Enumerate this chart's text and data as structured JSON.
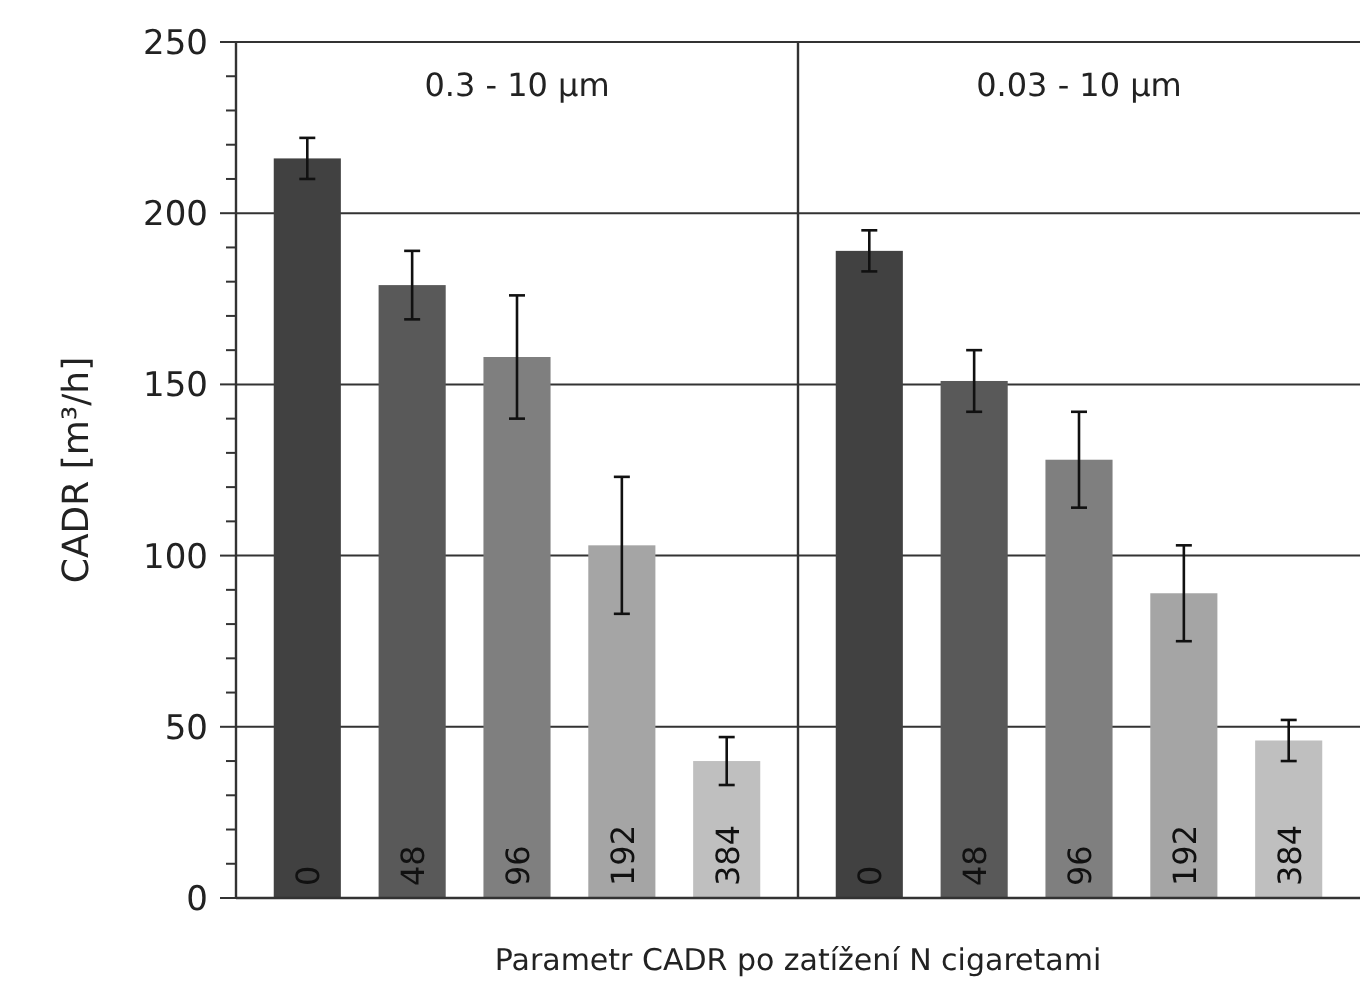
{
  "chart_data": [
    {
      "type": "bar",
      "title": "0.3 - 10 µm",
      "ylabel": "CADR [m³/h]",
      "xlabel": "Parametr CADR po zatížení N cigaretami",
      "categories": [
        "0",
        "48",
        "96",
        "192",
        "384"
      ],
      "values": [
        216,
        179,
        158,
        103,
        40
      ],
      "errors": [
        6,
        10,
        18,
        20,
        7
      ],
      "colors": [
        "#414141",
        "#595959",
        "#7f7f7f",
        "#a5a5a5",
        "#bfbfbf"
      ],
      "ylim": [
        0,
        250
      ],
      "yticks": [
        0,
        {
          "value": 10,
          "label": null
        },
        {
          "value": 20,
          "label": null
        },
        {
          "value": 30,
          "label": null
        },
        {
          "value": 40,
          "label": null
        },
        50,
        {
          "value": 60,
          "label": null
        },
        {
          "value": 70,
          "label": null
        },
        {
          "value": 80,
          "label": null
        },
        {
          "value": 90,
          "label": null
        },
        100,
        {
          "value": 110,
          "label": null
        },
        {
          "value": 120,
          "label": null
        },
        {
          "value": 130,
          "label": null
        },
        {
          "value": 140,
          "label": null
        },
        150,
        {
          "value": 160,
          "label": null
        },
        {
          "value": 170,
          "label": null
        },
        {
          "value": 180,
          "label": null
        },
        {
          "value": 190,
          "label": null
        },
        200,
        {
          "value": 210,
          "label": null
        },
        {
          "value": 220,
          "label": null
        },
        {
          "value": 230,
          "label": null
        },
        {
          "value": 240,
          "label": null
        },
        250
      ],
      "grid": "y"
    },
    {
      "type": "bar",
      "title": "0.03 - 10 µm",
      "categories": [
        "0",
        "48",
        "96",
        "192",
        "384"
      ],
      "values": [
        189,
        151,
        128,
        89,
        46
      ],
      "errors": [
        6,
        9,
        14,
        14,
        6
      ],
      "colors": [
        "#414141",
        "#595959",
        "#7f7f7f",
        "#a5a5a5",
        "#bfbfbf"
      ],
      "ylim": [
        0,
        250
      ],
      "yticks": [
        0,
        50,
        100,
        150,
        200,
        250
      ],
      "grid": "y",
      "tick_labels": "x"
    }
  ]
}
